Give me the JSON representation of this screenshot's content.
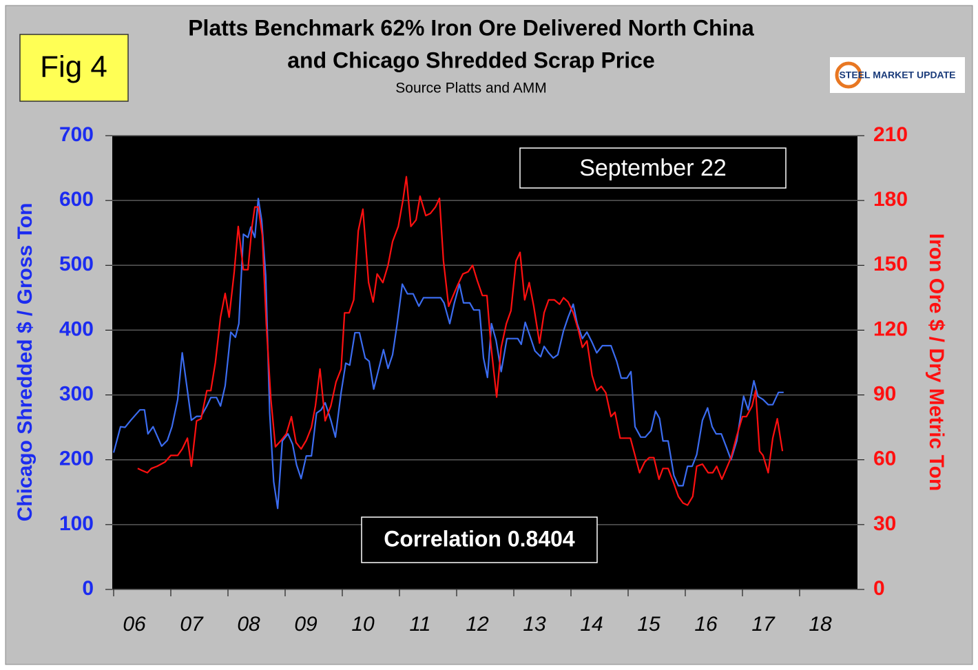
{
  "chart_data": {
    "type": "line",
    "title": "Platts Benchmark 62% Iron Ore Delivered North China",
    "title_line2": "and Chicago Shredded Scrap Price",
    "subtitle": "Source Platts and AMM",
    "figure_label": "Fig 4",
    "logo_text": "STEEL MARKET UPDATE",
    "annotations": [
      "September 22",
      "Correlation 0.8404"
    ],
    "ylabel": "Chicago Shredded $ / Gross Ton",
    "y2label": "Iron Ore $ / Dry Metric Ton",
    "xlim": [
      2006,
      2019
    ],
    "xticks": [
      {
        "value": 2006,
        "label": "06"
      },
      {
        "value": 2007,
        "label": "07"
      },
      {
        "value": 2008,
        "label": "08"
      },
      {
        "value": 2009,
        "label": "09"
      },
      {
        "value": 2010,
        "label": "10"
      },
      {
        "value": 2011,
        "label": "11"
      },
      {
        "value": 2012,
        "label": "12"
      },
      {
        "value": 2013,
        "label": "13"
      },
      {
        "value": 2014,
        "label": "14"
      },
      {
        "value": 2015,
        "label": "15"
      },
      {
        "value": 2016,
        "label": "16"
      },
      {
        "value": 2017,
        "label": "17"
      },
      {
        "value": 2018,
        "label": "18"
      }
    ],
    "ylim": [
      0,
      700
    ],
    "yticks": [
      0,
      100,
      200,
      300,
      400,
      500,
      600,
      700
    ],
    "y2lim": [
      0,
      210
    ],
    "y2ticks": [
      0,
      30,
      60,
      90,
      120,
      150,
      180,
      210
    ],
    "grid": true,
    "series": [
      {
        "color": "#3b6cf0",
        "axis": "y",
        "x": [
          2006.0,
          2006.12,
          2006.2,
          2006.3,
          2006.46,
          2006.54,
          2006.6,
          2006.69,
          2006.84,
          2006.94,
          2007.02,
          2007.12,
          2007.2,
          2007.28,
          2007.36,
          2007.45,
          2007.53,
          2007.63,
          2007.7,
          2007.8,
          2007.87,
          2007.95,
          2008.05,
          2008.13,
          2008.19,
          2008.27,
          2008.35,
          2008.4,
          2008.47,
          2008.53,
          2008.59,
          2008.66,
          2008.73,
          2008.8,
          2008.87,
          2008.95,
          2009.05,
          2009.13,
          2009.2,
          2009.28,
          2009.37,
          2009.46,
          2009.55,
          2009.63,
          2009.7,
          2009.8,
          2009.88,
          2009.98,
          2010.06,
          2010.13,
          2010.22,
          2010.3,
          2010.4,
          2010.47,
          2010.55,
          2010.64,
          2010.72,
          2010.8,
          2010.88,
          2010.96,
          2011.05,
          2011.14,
          2011.24,
          2011.34,
          2011.42,
          2011.54,
          2011.72,
          2011.78,
          2011.88,
          2011.96,
          2012.05,
          2012.12,
          2012.23,
          2012.3,
          2012.4,
          2012.47,
          2012.54,
          2012.61,
          2012.69,
          2012.78,
          2012.88,
          2012.96,
          2013.07,
          2013.13,
          2013.2,
          2013.29,
          2013.37,
          2013.47,
          2013.53,
          2013.61,
          2013.69,
          2013.77,
          2013.87,
          2013.95,
          2014.04,
          2014.11,
          2014.2,
          2014.28,
          2014.37,
          2014.45,
          2014.55,
          2014.7,
          2014.8,
          2014.88,
          2014.98,
          2015.05,
          2015.12,
          2015.22,
          2015.3,
          2015.4,
          2015.48,
          2015.55,
          2015.61,
          2015.7,
          2015.8,
          2015.88,
          2015.96,
          2016.04,
          2016.12,
          2016.2,
          2016.3,
          2016.39,
          2016.47,
          2016.54,
          2016.63,
          2016.72,
          2016.8,
          2016.9,
          2017.02,
          2017.1,
          2017.2,
          2017.27,
          2017.36,
          2017.45,
          2017.53,
          2017.63,
          2017.72
        ],
        "values": [
          211,
          251,
          250,
          261,
          277,
          277,
          240,
          251,
          221,
          230,
          251,
          293,
          365,
          314,
          261,
          267,
          267,
          283,
          296,
          296,
          283,
          314,
          397,
          389,
          410,
          548,
          543,
          559,
          543,
          603,
          569,
          484,
          272,
          166,
          125,
          229,
          240,
          224,
          192,
          171,
          206,
          206,
          272,
          277,
          288,
          261,
          235,
          304,
          349,
          346,
          396,
          396,
          357,
          352,
          309,
          341,
          370,
          341,
          362,
          410,
          471,
          456,
          456,
          437,
          450,
          450,
          450,
          442,
          410,
          442,
          471,
          442,
          442,
          431,
          431,
          357,
          327,
          410,
          384,
          336,
          387,
          387,
          387,
          378,
          412,
          389,
          368,
          359,
          375,
          365,
          357,
          362,
          399,
          420,
          440,
          410,
          387,
          397,
          381,
          365,
          376,
          376,
          352,
          326,
          326,
          336,
          251,
          235,
          235,
          245,
          275,
          264,
          229,
          229,
          176,
          160,
          160,
          190,
          190,
          208,
          261,
          280,
          251,
          240,
          240,
          219,
          200,
          229,
          298,
          277,
          322,
          298,
          293,
          285,
          285,
          304,
          304
        ]
      },
      {
        "color": "#ff1010",
        "axis": "y2",
        "x": [
          2006.42,
          2006.5,
          2006.59,
          2006.66,
          2006.76,
          2006.9,
          2007.0,
          2007.12,
          2007.2,
          2007.29,
          2007.36,
          2007.45,
          2007.53,
          2007.63,
          2007.7,
          2007.78,
          2007.87,
          2007.95,
          2008.02,
          2008.11,
          2008.18,
          2008.27,
          2008.35,
          2008.42,
          2008.47,
          2008.53,
          2008.6,
          2008.67,
          2008.75,
          2008.83,
          2008.93,
          2009.02,
          2009.11,
          2009.19,
          2009.28,
          2009.37,
          2009.46,
          2009.53,
          2009.61,
          2009.7,
          2009.8,
          2009.89,
          2009.98,
          2010.04,
          2010.12,
          2010.2,
          2010.28,
          2010.36,
          2010.46,
          2010.54,
          2010.61,
          2010.71,
          2010.8,
          2010.88,
          2010.98,
          2011.06,
          2011.12,
          2011.2,
          2011.29,
          2011.36,
          2011.46,
          2011.54,
          2011.63,
          2011.7,
          2011.77,
          2011.86,
          2011.94,
          2012.02,
          2012.11,
          2012.2,
          2012.28,
          2012.36,
          2012.45,
          2012.53,
          2012.6,
          2012.7,
          2012.78,
          2012.87,
          2012.95,
          2013.04,
          2013.11,
          2013.19,
          2013.27,
          2013.35,
          2013.45,
          2013.53,
          2013.61,
          2013.71,
          2013.8,
          2013.87,
          2013.95,
          2014.04,
          2014.13,
          2014.2,
          2014.28,
          2014.37,
          2014.45,
          2014.53,
          2014.61,
          2014.7,
          2014.77,
          2014.86,
          2014.94,
          2015.04,
          2015.12,
          2015.2,
          2015.29,
          2015.37,
          2015.45,
          2015.54,
          2015.61,
          2015.7,
          2015.8,
          2015.88,
          2015.96,
          2016.04,
          2016.13,
          2016.2,
          2016.3,
          2016.4,
          2016.48,
          2016.55,
          2016.64,
          2016.72,
          2016.8,
          2016.9,
          2017.0,
          2017.07,
          2017.17,
          2017.23,
          2017.3,
          2017.36,
          2017.45,
          2017.53,
          2017.61,
          2017.7
        ],
        "values": [
          56,
          55,
          54,
          56,
          57,
          59,
          62,
          62,
          65,
          70,
          57,
          78,
          79,
          92,
          92,
          105,
          126,
          137,
          126,
          147,
          168,
          148,
          148,
          168,
          177,
          177,
          164,
          123,
          88,
          66,
          69,
          72,
          80,
          68,
          65,
          69,
          75,
          85,
          102,
          78,
          85,
          96,
          102,
          128,
          128,
          134,
          166,
          176,
          142,
          133,
          146,
          142,
          150,
          161,
          168,
          180,
          191,
          168,
          171,
          182,
          173,
          174,
          177,
          181,
          152,
          131,
          136,
          141,
          146,
          147,
          150,
          143,
          136,
          136,
          113,
          89,
          112,
          123,
          129,
          152,
          156,
          134,
          142,
          131,
          114,
          128,
          134,
          134,
          132,
          135,
          133,
          128,
          120,
          112,
          115,
          99,
          92,
          94,
          91,
          80,
          82,
          70,
          70,
          70,
          62,
          54,
          59,
          61,
          61,
          51,
          56,
          56,
          49,
          43,
          40,
          39,
          43,
          57,
          58,
          54,
          54,
          57,
          51,
          56,
          61,
          71,
          80,
          80,
          85,
          92,
          64,
          62,
          54,
          70,
          79,
          64
        ]
      }
    ]
  }
}
